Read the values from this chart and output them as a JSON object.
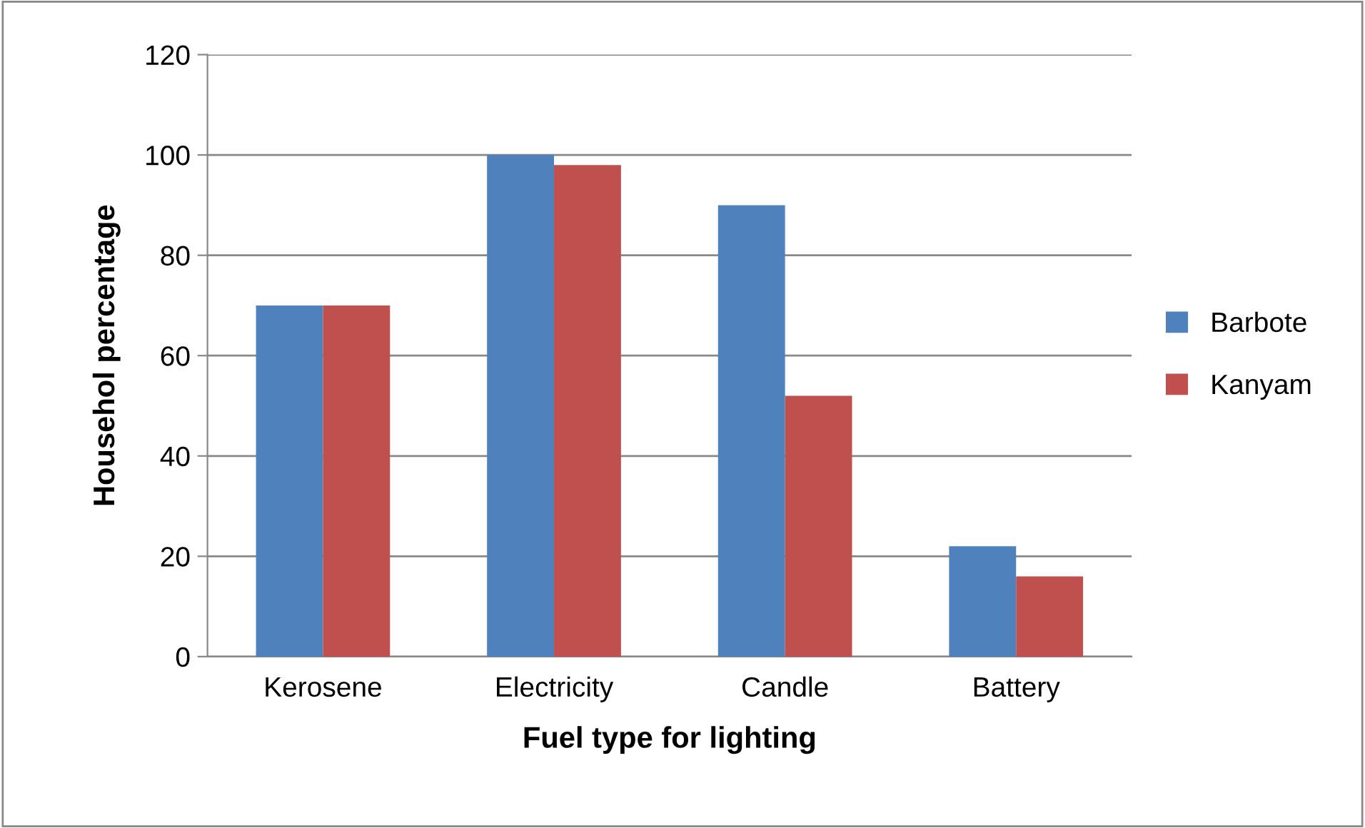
{
  "chart_data": {
    "type": "bar",
    "xlabel": "Fuel type for lighting",
    "ylabel": "Househol percentage",
    "categories": [
      "Kerosene",
      "Electricity",
      "Candle",
      "Battery"
    ],
    "series": [
      {
        "name": "Barbote",
        "color": "#4f81bd",
        "values": [
          70,
          100,
          90,
          22
        ]
      },
      {
        "name": "Kanyam",
        "color": "#c0504d",
        "values": [
          70,
          98,
          52,
          16
        ]
      }
    ],
    "ylim": [
      0,
      120
    ],
    "yticks": [
      0,
      20,
      40,
      60,
      80,
      100,
      120
    ],
    "grid": "y",
    "legend": "right"
  }
}
